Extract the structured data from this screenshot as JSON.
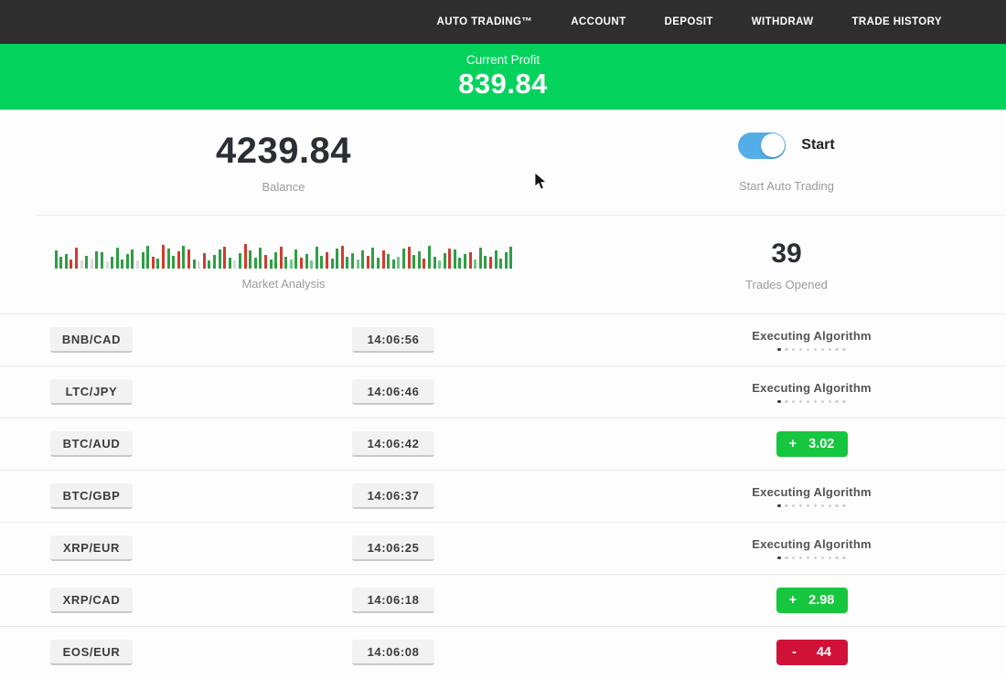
{
  "nav": {
    "items": [
      {
        "label": "AUTO TRADING™"
      },
      {
        "label": "ACCOUNT"
      },
      {
        "label": "DEPOSIT"
      },
      {
        "label": "WITHDRAW"
      },
      {
        "label": "TRADE HISTORY"
      }
    ]
  },
  "profit_banner": {
    "label": "Current Profit",
    "value": "839.84"
  },
  "stats": {
    "balance": {
      "value": "4239.84",
      "label": "Balance"
    },
    "auto_trading": {
      "toggle_label": "Start",
      "label": "Start Auto Trading",
      "enabled": true
    },
    "market_analysis": {
      "label": "Market Analysis",
      "palette": {
        "g": "#2f9e44",
        "G": "#74c687",
        "r": "#d23b2f",
        "p": "#d9ddd9"
      },
      "bars": [
        "g20",
        "g13",
        "g16",
        "r10",
        "r23",
        "p9",
        "g14",
        "p11",
        "g19",
        "g18",
        "p8",
        "g13",
        "g23",
        "g10",
        "g16",
        "g21",
        "p9",
        "g18",
        "g25",
        "r13",
        "g11",
        "r26",
        "g22",
        "g14",
        "r19",
        "g25",
        "r21",
        "g10",
        "p8",
        "r17",
        "g9",
        "g15",
        "g21",
        "r24",
        "g12",
        "p9",
        "g17",
        "r27",
        "g20",
        "g12",
        "g23",
        "r15",
        "g10",
        "g18",
        "r24",
        "g13",
        "G10",
        "g21",
        "r12",
        "g16",
        "G9",
        "g24",
        "g14",
        "r18",
        "g11",
        "g22",
        "r25",
        "g13",
        "g17",
        "G10",
        "g20",
        "r14",
        "g23",
        "g12",
        "r20",
        "g16",
        "g10",
        "G13",
        "g22",
        "r24",
        "g15",
        "g19",
        "r11",
        "g25",
        "g13",
        "G9",
        "g17",
        "r22",
        "g21",
        "g12",
        "g16",
        "r18",
        "G10",
        "g23",
        "g14",
        "r13",
        "g20",
        "g11",
        "g18",
        "g24"
      ]
    },
    "trades_opened": {
      "value": "39",
      "label": "Trades Opened"
    }
  },
  "trades": [
    {
      "pair": "BNB/CAD",
      "time": "14:06:56",
      "status": "executing",
      "status_label": "Executing Algorithm"
    },
    {
      "pair": "LTC/JPY",
      "time": "14:06:46",
      "status": "executing",
      "status_label": "Executing Algorithm"
    },
    {
      "pair": "BTC/AUD",
      "time": "14:06:42",
      "status": "profit",
      "result_sign": "+",
      "result_value": "3.02"
    },
    {
      "pair": "BTC/GBP",
      "time": "14:06:37",
      "status": "executing",
      "status_label": "Executing Algorithm"
    },
    {
      "pair": "XRP/EUR",
      "time": "14:06:25",
      "status": "executing",
      "status_label": "Executing Algorithm"
    },
    {
      "pair": "XRP/CAD",
      "time": "14:06:18",
      "status": "profit",
      "result_sign": "+",
      "result_value": "2.98"
    },
    {
      "pair": "EOS/EUR",
      "time": "14:06:08",
      "status": "loss",
      "result_sign": "-",
      "result_value": "44"
    }
  ],
  "colors": {
    "header_bg": "#2e2e2e",
    "accent_green": "#03d35c",
    "badge_green": "#17c63f",
    "badge_red": "#d01238",
    "toggle_blue": "#53aee8"
  }
}
